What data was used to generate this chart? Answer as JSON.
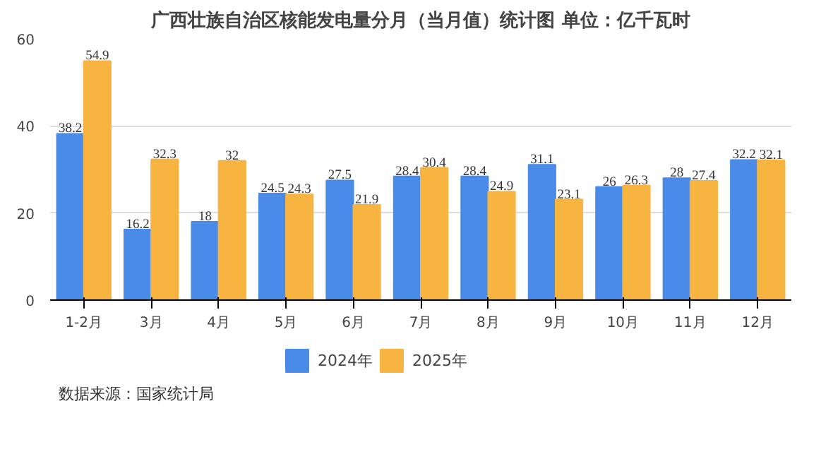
{
  "chart_data": {
    "type": "bar",
    "title": "广西壮族自治区核能发电量分月（当月值）统计图 单位：亿千瓦时",
    "categories": [
      "1-2月",
      "3月",
      "4月",
      "5月",
      "6月",
      "7月",
      "8月",
      "9月",
      "10月",
      "11月",
      "12月"
    ],
    "series": [
      {
        "name": "2024年",
        "color": "#4a8be8",
        "values": [
          38.2,
          16.2,
          18,
          24.5,
          27.5,
          28.4,
          28.4,
          31.1,
          26,
          28,
          32.2
        ]
      },
      {
        "name": "2025年",
        "color": "#f8b441",
        "values": [
          54.9,
          32.3,
          32,
          24.3,
          21.9,
          30.4,
          24.9,
          23.1,
          26.3,
          27.4,
          32.1
        ]
      }
    ],
    "ylim": [
      0,
      60
    ],
    "yticks": [
      0,
      20,
      40,
      60
    ],
    "grid": "y",
    "legend": "bottom",
    "data_labels": true,
    "annotations": [
      "数据来源：国家统计局"
    ]
  }
}
